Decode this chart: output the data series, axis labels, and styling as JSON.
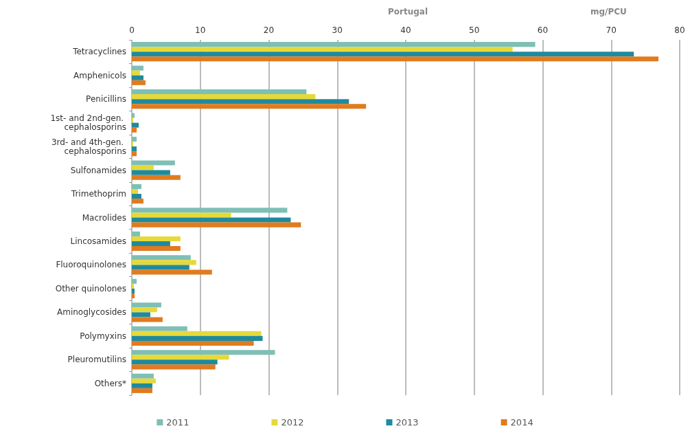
{
  "chart_data": {
    "type": "bar",
    "orientation": "horizontal",
    "title": "Portugal",
    "xlabel": "mg/PCU",
    "categories": [
      "Tetracyclines",
      "Amphenicols",
      "Penicillins",
      "1st- and 2nd-gen. cephalosporins",
      "3rd- and 4th-gen. cephalosporins",
      "Sulfonamides",
      "Trimethoprim",
      "Macrolides",
      "Lincosamides",
      "Fluoroquinolones",
      "Other quinolones",
      "Aminoglycosides",
      "Polymyxins",
      "Pleuromutilins",
      "Others*"
    ],
    "series": [
      {
        "name": "2011",
        "color": "#7fbfb5",
        "values": [
          58.9,
          1.7,
          25.5,
          0.4,
          0.7,
          6.3,
          1.4,
          22.7,
          1.2,
          8.6,
          0.7,
          4.3,
          8.1,
          20.9,
          3.2
        ]
      },
      {
        "name": "2012",
        "color": "#e6d93a",
        "values": [
          55.6,
          1.2,
          26.8,
          0.2,
          0.2,
          3.2,
          0.9,
          14.5,
          7.1,
          9.4,
          0.3,
          3.7,
          18.9,
          14.2,
          3.5
        ]
      },
      {
        "name": "2013",
        "color": "#1f8a9e",
        "values": [
          73.3,
          1.7,
          31.7,
          1.0,
          0.7,
          5.6,
          1.4,
          23.2,
          5.6,
          8.4,
          0.4,
          2.7,
          19.1,
          12.5,
          3.0
        ]
      },
      {
        "name": "2014",
        "color": "#e07b20",
        "values": [
          76.9,
          2.0,
          34.2,
          0.7,
          0.7,
          7.1,
          1.7,
          24.7,
          7.1,
          11.7,
          0.4,
          4.5,
          17.8,
          12.2,
          3.0
        ]
      }
    ],
    "xlim": [
      0,
      80
    ],
    "xticks": [
      0,
      10,
      20,
      30,
      40,
      50,
      60,
      70,
      80
    ],
    "grid": "x",
    "legend": "bottom"
  }
}
